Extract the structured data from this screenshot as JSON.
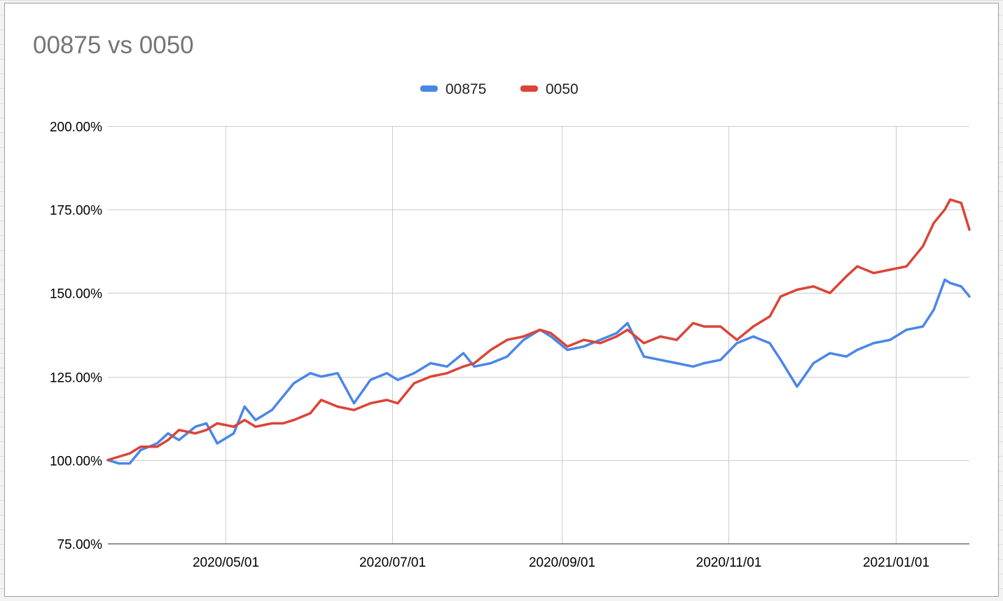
{
  "chart_data": {
    "type": "line",
    "title": "00875 vs 0050",
    "xlabel": "",
    "ylabel": "",
    "legend_position": "top-center",
    "grid": true,
    "y_format": "percent",
    "ylim": [
      0.75,
      2.0
    ],
    "y_ticks": [
      0.75,
      1.0,
      1.25,
      1.5,
      1.75,
      2.0
    ],
    "y_tick_labels": [
      "75.00%",
      "100.00%",
      "125.00%",
      "150.00%",
      "175.00%",
      "200.00%"
    ],
    "xlim": [
      "2020-03-19",
      "2021-01-28"
    ],
    "x_ticks": [
      "2020-05-01",
      "2020-07-01",
      "2020-09-01",
      "2020-11-01",
      "2021-01-01"
    ],
    "x_tick_labels": [
      "2020/05/01",
      "2020/07/01",
      "2020/09/01",
      "2020/11/01",
      "2021/01/01"
    ],
    "x": [
      "2020-03-19",
      "2020-03-23",
      "2020-03-27",
      "2020-03-31",
      "2020-04-06",
      "2020-04-10",
      "2020-04-14",
      "2020-04-20",
      "2020-04-24",
      "2020-04-28",
      "2020-05-04",
      "2020-05-08",
      "2020-05-12",
      "2020-05-18",
      "2020-05-22",
      "2020-05-26",
      "2020-06-01",
      "2020-06-05",
      "2020-06-11",
      "2020-06-17",
      "2020-06-23",
      "2020-06-29",
      "2020-07-03",
      "2020-07-09",
      "2020-07-15",
      "2020-07-21",
      "2020-07-27",
      "2020-07-31",
      "2020-08-06",
      "2020-08-12",
      "2020-08-18",
      "2020-08-24",
      "2020-08-28",
      "2020-09-03",
      "2020-09-09",
      "2020-09-15",
      "2020-09-21",
      "2020-09-25",
      "2020-10-01",
      "2020-10-07",
      "2020-10-13",
      "2020-10-19",
      "2020-10-23",
      "2020-10-29",
      "2020-11-04",
      "2020-11-10",
      "2020-11-16",
      "2020-11-20",
      "2020-11-26",
      "2020-12-02",
      "2020-12-08",
      "2020-12-14",
      "2020-12-18",
      "2020-12-24",
      "2020-12-30",
      "2021-01-05",
      "2021-01-11",
      "2021-01-15",
      "2021-01-19",
      "2021-01-21",
      "2021-01-25",
      "2021-01-28"
    ],
    "series": [
      {
        "name": "00875",
        "color": "#4a86e8",
        "values": [
          1.0,
          0.99,
          0.99,
          1.03,
          1.05,
          1.08,
          1.06,
          1.1,
          1.11,
          1.05,
          1.08,
          1.16,
          1.12,
          1.15,
          1.19,
          1.23,
          1.26,
          1.25,
          1.26,
          1.17,
          1.24,
          1.26,
          1.24,
          1.26,
          1.29,
          1.28,
          1.32,
          1.28,
          1.29,
          1.31,
          1.36,
          1.39,
          1.37,
          1.33,
          1.34,
          1.36,
          1.38,
          1.41,
          1.31,
          1.3,
          1.29,
          1.28,
          1.29,
          1.3,
          1.35,
          1.37,
          1.35,
          1.3,
          1.22,
          1.29,
          1.32,
          1.31,
          1.33,
          1.35,
          1.36,
          1.39,
          1.4,
          1.45,
          1.54,
          1.53,
          1.52,
          1.49
        ]
      },
      {
        "name": "0050",
        "color": "#db4437",
        "values": [
          1.0,
          1.01,
          1.02,
          1.04,
          1.04,
          1.06,
          1.09,
          1.08,
          1.09,
          1.11,
          1.1,
          1.12,
          1.1,
          1.11,
          1.11,
          1.12,
          1.14,
          1.18,
          1.16,
          1.15,
          1.17,
          1.18,
          1.17,
          1.23,
          1.25,
          1.26,
          1.28,
          1.29,
          1.33,
          1.36,
          1.37,
          1.39,
          1.38,
          1.34,
          1.36,
          1.35,
          1.37,
          1.39,
          1.35,
          1.37,
          1.36,
          1.41,
          1.4,
          1.4,
          1.36,
          1.4,
          1.43,
          1.49,
          1.51,
          1.52,
          1.5,
          1.55,
          1.58,
          1.56,
          1.57,
          1.58,
          1.64,
          1.71,
          1.75,
          1.78,
          1.77,
          1.69
        ]
      }
    ]
  }
}
